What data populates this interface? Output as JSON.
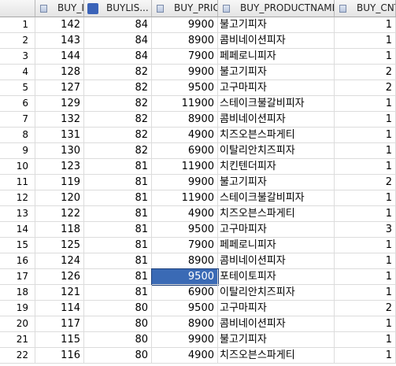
{
  "table": {
    "columns": [
      "BUY_ID",
      "BUYLIS...",
      "BUY_PRICE",
      "BUY_PRODUCTNAME",
      "BUY_CNT"
    ],
    "rows": [
      [
        "1",
        "142",
        "84",
        "9900",
        "불고기피자",
        "1"
      ],
      [
        "2",
        "143",
        "84",
        "8900",
        "콤비네이션피자",
        "1"
      ],
      [
        "3",
        "144",
        "84",
        "7900",
        "페페로니피자",
        "1"
      ],
      [
        "4",
        "128",
        "82",
        "9900",
        "불고기피자",
        "2"
      ],
      [
        "5",
        "127",
        "82",
        "9500",
        "고구마피자",
        "2"
      ],
      [
        "6",
        "129",
        "82",
        "11900",
        "스테이크불갈비피자",
        "1"
      ],
      [
        "7",
        "132",
        "82",
        "8900",
        "콤비네이션피자",
        "1"
      ],
      [
        "8",
        "131",
        "82",
        "4900",
        "치즈오븐스파게티",
        "1"
      ],
      [
        "9",
        "130",
        "82",
        "6900",
        "이탈리안치즈피자",
        "1"
      ],
      [
        "10",
        "123",
        "81",
        "11900",
        "치킨텐더피자",
        "1"
      ],
      [
        "11",
        "119",
        "81",
        "9900",
        "불고기피자",
        "2"
      ],
      [
        "12",
        "120",
        "81",
        "11900",
        "스테이크불갈비피자",
        "1"
      ],
      [
        "13",
        "122",
        "81",
        "4900",
        "치즈오븐스파게티",
        "1"
      ],
      [
        "14",
        "118",
        "81",
        "9500",
        "고구마피자",
        "3"
      ],
      [
        "15",
        "125",
        "81",
        "7900",
        "페페로니피자",
        "1"
      ],
      [
        "16",
        "124",
        "81",
        "8900",
        "콤비네이션피자",
        "1"
      ],
      [
        "17",
        "126",
        "81",
        "9500",
        "포테이토피자",
        "1"
      ],
      [
        "18",
        "121",
        "81",
        "6900",
        "이탈리안치즈피자",
        "1"
      ],
      [
        "19",
        "114",
        "80",
        "9500",
        "고구마피자",
        "2"
      ],
      [
        "20",
        "117",
        "80",
        "8900",
        "콤비네이션피자",
        "1"
      ],
      [
        "21",
        "115",
        "80",
        "9900",
        "불고기피자",
        "1"
      ],
      [
        "22",
        "116",
        "80",
        "4900",
        "치즈오븐스파게티",
        "1"
      ]
    ],
    "selected": {
      "row": 16,
      "column": 3
    }
  }
}
